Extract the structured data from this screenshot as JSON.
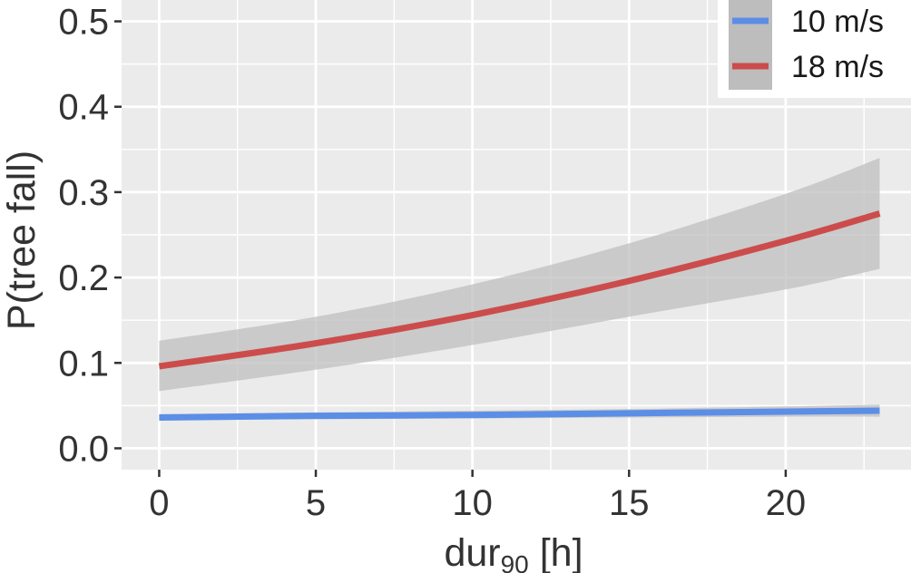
{
  "chart_data": {
    "type": "line",
    "xlabel_main": "dur",
    "xlabel_sub": "90",
    "xlabel_unit": " [h]",
    "ylabel": "P(tree fall)",
    "xlim": [
      -1.2,
      24.0
    ],
    "ylim": [
      -0.025,
      0.525
    ],
    "x_ticks": [
      0,
      5,
      10,
      15,
      20
    ],
    "x_tick_labels": [
      "0",
      "5",
      "10",
      "15",
      "20"
    ],
    "y_ticks": [
      0.0,
      0.1,
      0.2,
      0.3,
      0.4,
      0.5
    ],
    "y_tick_labels": [
      "0.0",
      "0.1",
      "0.2",
      "0.3",
      "0.4",
      "0.5"
    ],
    "grid": true,
    "legend_position": "top-right",
    "series": [
      {
        "name": "10 m/s",
        "color": "#5b8ee6",
        "x": [
          0,
          5,
          10,
          15,
          20,
          23
        ],
        "y": [
          0.036,
          0.038,
          0.039,
          0.041,
          0.043,
          0.044
        ],
        "ci_lower": [
          0.033,
          0.034,
          0.035,
          0.036,
          0.037,
          0.037
        ],
        "ci_upper": [
          0.04,
          0.042,
          0.044,
          0.046,
          0.049,
          0.051
        ]
      },
      {
        "name": "18 m/s",
        "color": "#cc4c4c",
        "x": [
          0,
          5,
          10,
          15,
          20,
          23
        ],
        "y": [
          0.096,
          0.123,
          0.156,
          0.196,
          0.243,
          0.275
        ],
        "ci_lower": [
          0.067,
          0.092,
          0.121,
          0.154,
          0.186,
          0.21
        ],
        "ci_upper": [
          0.126,
          0.154,
          0.192,
          0.24,
          0.298,
          0.34
        ]
      }
    ],
    "ci_color": "#bdbdbd",
    "panel_background": "#ebebeb",
    "grid_color": "#ffffff"
  }
}
